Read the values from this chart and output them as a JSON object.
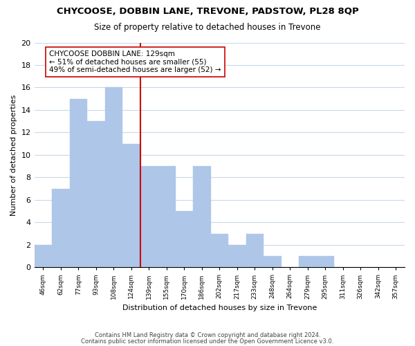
{
  "title": "CHYCOOSE, DOBBIN LANE, TREVONE, PADSTOW, PL28 8QP",
  "subtitle": "Size of property relative to detached houses in Trevone",
  "xlabel": "Distribution of detached houses by size in Trevone",
  "ylabel": "Number of detached properties",
  "bin_labels": [
    "46sqm",
    "62sqm",
    "77sqm",
    "93sqm",
    "108sqm",
    "124sqm",
    "139sqm",
    "155sqm",
    "170sqm",
    "186sqm",
    "202sqm",
    "217sqm",
    "233sqm",
    "248sqm",
    "264sqm",
    "279sqm",
    "295sqm",
    "311sqm",
    "326sqm",
    "342sqm",
    "357sqm"
  ],
  "bar_values": [
    2,
    7,
    15,
    13,
    16,
    11,
    9,
    9,
    5,
    9,
    3,
    2,
    3,
    1,
    0,
    1,
    1,
    0,
    0,
    0,
    0
  ],
  "bar_color": "#aec6e8",
  "marker_line_color": "#cc0000",
  "annotation_box_color": "#ffffff",
  "annotation_box_edge": "#cc0000",
  "marker_label_line1": "CHYCOOSE DOBBIN LANE: 129sqm",
  "marker_label_line2": "← 51% of detached houses are smaller (55)",
  "marker_label_line3": "49% of semi-detached houses are larger (52) →",
  "ylim": [
    0,
    20
  ],
  "yticks": [
    0,
    2,
    4,
    6,
    8,
    10,
    12,
    14,
    16,
    18,
    20
  ],
  "footer_line1": "Contains HM Land Registry data © Crown copyright and database right 2024.",
  "footer_line2": "Contains public sector information licensed under the Open Government Licence v3.0.",
  "background_color": "#ffffff",
  "grid_color": "#c8d8e8"
}
